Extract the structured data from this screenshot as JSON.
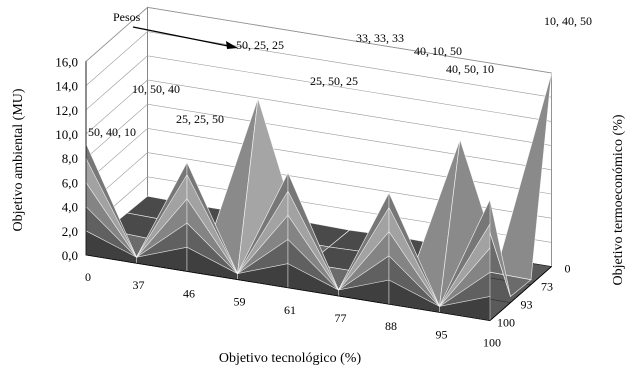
{
  "chart_data": {
    "type": "surface",
    "title": "",
    "zlabel": "Objetivo ambiental (MU)",
    "xlabel": "Objetivo tecnológico (%)",
    "ylabel": "Objetivo termoeconómico (%)",
    "zlim": [
      0,
      16
    ],
    "z_ticks": [
      "0,0",
      "2,0",
      "4,0",
      "6,0",
      "8,0",
      "10,0",
      "12,0",
      "14,0",
      "16,0"
    ],
    "x_ticks": [
      "0",
      "37",
      "46",
      "59",
      "61",
      "77",
      "88",
      "95",
      "100"
    ],
    "y_ticks": [
      "0",
      "73",
      "93",
      "100"
    ],
    "weights_label": "Pesos",
    "weight_labels": [
      "50, 40, 10",
      "10, 50, 40",
      "25, 25, 50",
      "50, 25, 25",
      "25, 50, 25",
      "33, 33, 33",
      "40, 10, 50",
      "40, 50, 10",
      "10, 40, 50"
    ],
    "front_profile": [
      9.2,
      0.5,
      9.0,
      0.5,
      9.5,
      0.5,
      9.2,
      0.5,
      10.0
    ],
    "surface": [
      [
        9.2,
        0.5,
        9.0,
        0.5,
        9.5,
        0.5,
        9.2,
        0.5,
        10.0
      ],
      [
        0.6,
        0.4,
        0.5,
        13.5,
        0.5,
        0.5,
        0.5,
        12.8,
        0.5
      ],
      [
        0.5,
        0.4,
        0.4,
        0.5,
        0.4,
        0.5,
        0.4,
        0.5,
        0.4
      ],
      [
        0.4,
        0.3,
        0.3,
        0.4,
        0.3,
        0.4,
        0.3,
        0.4,
        16.0
      ]
    ],
    "band_colors": [
      "#4a4a4a",
      "#6b6b6b",
      "#8a8a8a",
      "#a5a5a5",
      "#7d7d7d",
      "#b9b9b9",
      "#999999",
      "#cfcfcf"
    ],
    "grid": true
  }
}
